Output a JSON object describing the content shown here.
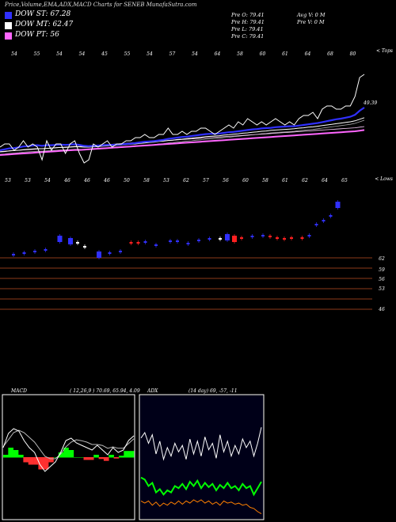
{
  "header": {
    "title": "Price,Volume,EMA,ADX,MACD Charts for SENEB MunafaSutra.com",
    "legend": [
      {
        "label": "DOW ST: 67.28",
        "color": "#3030ff"
      },
      {
        "label": "DOW MT: 62.47",
        "color": "#ffffff"
      },
      {
        "label": "DOW PT: 56",
        "color": "#ff66ff"
      }
    ],
    "prices": [
      [
        "Pre O: 79.41",
        "Avg V: 0 M"
      ],
      [
        "Pre H: 79.41",
        "Pre V: 0 M"
      ],
      [
        "Pre L: 79.41",
        ""
      ],
      [
        "Pre C: 79.41",
        ""
      ]
    ]
  },
  "chart_data": [
    {
      "type": "line",
      "panel": "price-ema",
      "corner_label": "< Tops",
      "price_label": "49.39",
      "top_labels": [
        "54",
        "55",
        "54",
        "54",
        "45",
        "55",
        "54",
        "57",
        "54",
        "64",
        "58",
        "60",
        "61",
        "64",
        "68",
        "80"
      ],
      "bottom_labels": [
        "53",
        "53",
        "54",
        "46",
        "46",
        "46",
        "50",
        "58",
        "53",
        "62",
        "57",
        "56",
        "60",
        "58",
        "61",
        "62",
        "64",
        "65"
      ],
      "corner_label_2": "< Lows",
      "series": [
        {
          "name": "price",
          "color": "#ffffff",
          "values": [
            34,
            35,
            35,
            33,
            34,
            36,
            34,
            35,
            34,
            30,
            36,
            33,
            35,
            35,
            32,
            35,
            36,
            32,
            29,
            30,
            35,
            34,
            35,
            36,
            34,
            35,
            35,
            36,
            36,
            37,
            37,
            38,
            37,
            37,
            38,
            38,
            40,
            38,
            38,
            39,
            38,
            39,
            39,
            40,
            40,
            39,
            38,
            39,
            40,
            41,
            40,
            42,
            41,
            43,
            42,
            41,
            42,
            41,
            42,
            43,
            42,
            41,
            42,
            41,
            43,
            44,
            44,
            45,
            43,
            46,
            47,
            47,
            46,
            46,
            47,
            47,
            50,
            56,
            57
          ]
        },
        {
          "name": "ema-short",
          "color": "#3030ff",
          "values": [
            33,
            33.3,
            33.6,
            33.7,
            33.9,
            34.2,
            34.3,
            34.5,
            34.6,
            34.4,
            34.6,
            34.6,
            34.7,
            34.8,
            34.7,
            34.8,
            34.9,
            34.7,
            34.4,
            34.3,
            34.4,
            34.5,
            34.6,
            34.7,
            34.7,
            34.8,
            34.9,
            35,
            35.1,
            35.3,
            35.5,
            35.7,
            35.8,
            35.9,
            36.1,
            36.3,
            36.6,
            36.8,
            37,
            37.2,
            37.3,
            37.5,
            37.7,
            37.9,
            38.1,
            38.2,
            38.2,
            38.3,
            38.5,
            38.7,
            38.8,
            39,
            39.2,
            39.4,
            39.6,
            39.7,
            39.9,
            40,
            40.1,
            40.3,
            40.4,
            40.5,
            40.6,
            40.6,
            40.8,
            41,
            41.2,
            41.4,
            41.6,
            41.9,
            42.2,
            42.5,
            42.8,
            43,
            43.3,
            43.6,
            44.2,
            45.5,
            46.5
          ]
        },
        {
          "name": "ema-mid",
          "color": "#ffffff",
          "values": [
            32.5,
            32.6,
            32.8,
            32.9,
            33,
            33.2,
            33.3,
            33.4,
            33.5,
            33.5,
            33.6,
            33.7,
            33.8,
            33.9,
            33.9,
            34,
            34.1,
            34.1,
            34,
            34,
            34.1,
            34.2,
            34.3,
            34.4,
            34.5,
            34.6,
            34.7,
            34.8,
            34.9,
            35,
            35.2,
            35.3,
            35.5,
            35.6,
            35.8,
            35.9,
            36.1,
            36.2,
            36.4,
            36.5,
            36.7,
            36.8,
            37,
            37.1,
            37.3,
            37.4,
            37.5,
            37.6,
            37.8,
            37.9,
            38.1,
            38.2,
            38.4,
            38.5,
            38.7,
            38.8,
            39,
            39.1,
            39.3,
            39.4,
            39.5,
            39.6,
            39.7,
            39.8,
            40,
            40.1,
            40.3,
            40.4,
            40.6,
            40.8,
            41,
            41.2,
            41.4,
            41.6,
            41.8,
            42,
            42.3,
            42.8,
            43.3
          ]
        },
        {
          "name": "ema-long",
          "color": "#ff66ff",
          "values": [
            31.5,
            31.6,
            31.7,
            31.8,
            31.9,
            32,
            32.1,
            32.2,
            32.3,
            32.4,
            32.5,
            32.6,
            32.7,
            32.8,
            32.9,
            33,
            33.1,
            33.1,
            33.2,
            33.3,
            33.4,
            33.5,
            33.6,
            33.7,
            33.8,
            33.9,
            34,
            34.1,
            34.2,
            34.3,
            34.4,
            34.5,
            34.6,
            34.7,
            34.8,
            34.9,
            35,
            35.1,
            35.2,
            35.3,
            35.4,
            35.5,
            35.6,
            35.7,
            35.8,
            35.9,
            36,
            36.1,
            36.2,
            36.3,
            36.4,
            36.5,
            36.6,
            36.7,
            36.8,
            36.9,
            37,
            37.1,
            37.2,
            37.3,
            37.4,
            37.5,
            37.6,
            37.7,
            37.8,
            37.9,
            38,
            38.1,
            38.2,
            38.3,
            38.4,
            38.5,
            38.6,
            38.7,
            38.8,
            38.9,
            39,
            39.2,
            39.4
          ]
        }
      ]
    },
    {
      "type": "bar",
      "panel": "volume",
      "level_labels": [
        "62",
        "59",
        "56",
        "53",
        "46"
      ],
      "candles": [
        {
          "x": 0.02,
          "y": 0.7,
          "c": "#3030ff"
        },
        {
          "x": 0.05,
          "y": 0.68,
          "c": "#3030ff"
        },
        {
          "x": 0.08,
          "y": 0.66,
          "c": "#3030ff"
        },
        {
          "x": 0.11,
          "y": 0.64,
          "c": "#3030ff"
        },
        {
          "x": 0.15,
          "y": 0.5,
          "c": "#3030ff",
          "big": 1
        },
        {
          "x": 0.18,
          "y": 0.53,
          "c": "#3030ff",
          "big": 1
        },
        {
          "x": 0.2,
          "y": 0.55,
          "c": "#fff"
        },
        {
          "x": 0.22,
          "y": 0.6,
          "c": "#fff"
        },
        {
          "x": 0.26,
          "y": 0.7,
          "c": "#3030ff",
          "big": 1
        },
        {
          "x": 0.29,
          "y": 0.68,
          "c": "#3030ff"
        },
        {
          "x": 0.32,
          "y": 0.66,
          "c": "#3030ff"
        },
        {
          "x": 0.35,
          "y": 0.55,
          "c": "#ff2020"
        },
        {
          "x": 0.37,
          "y": 0.55,
          "c": "#ff2020"
        },
        {
          "x": 0.39,
          "y": 0.54,
          "c": "#3030ff"
        },
        {
          "x": 0.42,
          "y": 0.58,
          "c": "#3030ff"
        },
        {
          "x": 0.46,
          "y": 0.53,
          "c": "#3030ff"
        },
        {
          "x": 0.48,
          "y": 0.53,
          "c": "#3030ff"
        },
        {
          "x": 0.51,
          "y": 0.56,
          "c": "#3030ff"
        },
        {
          "x": 0.54,
          "y": 0.52,
          "c": "#3030ff"
        },
        {
          "x": 0.57,
          "y": 0.5,
          "c": "#3030ff"
        },
        {
          "x": 0.6,
          "y": 0.5,
          "c": "#fff"
        },
        {
          "x": 0.62,
          "y": 0.48,
          "c": "#3030ff",
          "big": 1
        },
        {
          "x": 0.64,
          "y": 0.5,
          "c": "#ff2020",
          "big": 1
        },
        {
          "x": 0.66,
          "y": 0.49,
          "c": "#ff2020"
        },
        {
          "x": 0.69,
          "y": 0.47,
          "c": "#3030ff"
        },
        {
          "x": 0.72,
          "y": 0.46,
          "c": "#3030ff"
        },
        {
          "x": 0.74,
          "y": 0.47,
          "c": "#ff2020"
        },
        {
          "x": 0.76,
          "y": 0.49,
          "c": "#ff2020"
        },
        {
          "x": 0.78,
          "y": 0.5,
          "c": "#ff2020"
        },
        {
          "x": 0.8,
          "y": 0.49,
          "c": "#ff2020"
        },
        {
          "x": 0.83,
          "y": 0.49,
          "c": "#ff2020"
        },
        {
          "x": 0.85,
          "y": 0.46,
          "c": "#3030ff"
        },
        {
          "x": 0.87,
          "y": 0.32,
          "c": "#3030ff"
        },
        {
          "x": 0.89,
          "y": 0.27,
          "c": "#3030ff"
        },
        {
          "x": 0.91,
          "y": 0.21,
          "c": "#3030ff"
        },
        {
          "x": 0.93,
          "y": 0.07,
          "c": "#3030ff",
          "big": 1
        }
      ]
    },
    {
      "type": "line",
      "panel": "macd",
      "label": "MACD",
      "params": "( 12,26,9 ) 70.69, 65.94, 4.09",
      "series": [
        {
          "name": "macd",
          "color": "#ffffff",
          "values": [
            0.2,
            0.5,
            0.6,
            0.55,
            0.35,
            0.2,
            0.1,
            -0.15,
            -0.3,
            -0.2,
            -0.1,
            0.1,
            0.35,
            0.4,
            0.3,
            0.25,
            0.2,
            0.15,
            0.25,
            0.15,
            0.05,
            0.2,
            0.1,
            0.15,
            0.35,
            0.45
          ]
        },
        {
          "name": "signal",
          "color": "#bbbbbb",
          "values": [
            0.15,
            0.3,
            0.45,
            0.5,
            0.45,
            0.35,
            0.25,
            0.1,
            -0.05,
            -0.1,
            -0.1,
            0,
            0.15,
            0.25,
            0.3,
            0.28,
            0.25,
            0.2,
            0.2,
            0.18,
            0.12,
            0.15,
            0.12,
            0.12,
            0.22,
            0.32
          ]
        },
        {
          "name": "histogram",
          "color": "#00ff00",
          "values": [
            0.05,
            0.2,
            0.15,
            0.05,
            -0.1,
            -0.15,
            -0.15,
            -0.25,
            -0.25,
            -0.1,
            0,
            0.1,
            0.2,
            0.15,
            0,
            0,
            -0.05,
            -0.05,
            0.05,
            -0.03,
            -0.07,
            0.05,
            -0.02,
            0.03,
            0.13,
            0.13
          ]
        }
      ]
    },
    {
      "type": "line",
      "panel": "adx",
      "label": "ADX",
      "params": "(14 day) 69, -57, -11",
      "series": [
        {
          "name": "adx",
          "color": "#ffffff",
          "values": [
            75,
            80,
            70,
            78,
            60,
            72,
            55,
            66,
            58,
            70,
            62,
            68,
            55,
            74,
            60,
            72,
            58,
            76,
            64,
            70,
            56,
            78,
            62,
            72,
            58,
            68,
            60,
            74,
            66,
            72,
            58,
            70,
            85
          ]
        },
        {
          "name": "plus-di",
          "color": "#00ff00",
          "values": [
            38,
            36,
            30,
            33,
            24,
            27,
            22,
            26,
            24,
            30,
            28,
            32,
            27,
            34,
            30,
            35,
            28,
            33,
            29,
            32,
            26,
            31,
            28,
            33,
            28,
            30,
            26,
            32,
            28,
            30,
            22,
            28,
            34
          ]
        },
        {
          "name": "minus-di",
          "color": "#ff8000",
          "values": [
            16,
            14,
            16,
            12,
            15,
            11,
            14,
            12,
            15,
            13,
            16,
            13,
            16,
            14,
            17,
            15,
            17,
            14,
            16,
            13,
            15,
            12,
            16,
            14,
            15,
            13,
            14,
            12,
            13,
            10,
            9,
            6,
            4
          ]
        }
      ]
    }
  ]
}
